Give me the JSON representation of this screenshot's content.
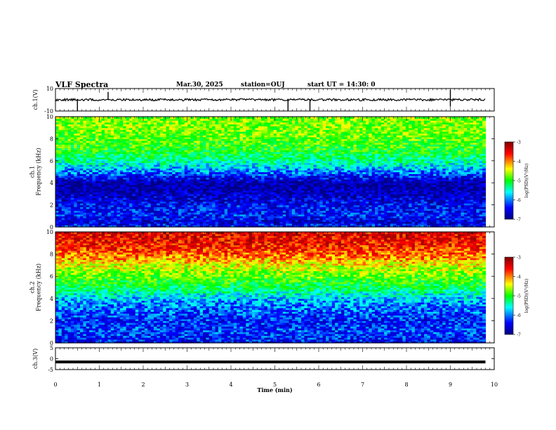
{
  "header": {
    "title": "VLF Spectra",
    "date": "Mar.30, 2025",
    "station": "station=OUJ",
    "start": "start  UT =   14:30: 0"
  },
  "chart_data": [
    {
      "type": "line",
      "name": "ch1-waveform",
      "ylabel": "ch.1(V)",
      "ytick_labels": [
        "10",
        "-10"
      ],
      "ylim": [
        -10,
        10
      ],
      "xlim": [
        0,
        10
      ],
      "trace_level": 0,
      "spikes": [
        {
          "t": 0.5,
          "v": -10
        },
        {
          "t": 1.2,
          "v": 7
        },
        {
          "t": 5.3,
          "v": -10
        },
        {
          "t": 5.8,
          "v": -10
        },
        {
          "t": 9.0,
          "v": 9
        },
        {
          "t": 9.0,
          "v": -6
        }
      ]
    },
    {
      "type": "heatmap",
      "name": "ch1-spectrogram",
      "ylabel": "ch.1\nFrequency (kHz)",
      "ytick_labels": [
        "0",
        "2",
        "4",
        "6",
        "8",
        "10"
      ],
      "ylim": [
        0,
        10
      ],
      "xlim": [
        0,
        9.8
      ],
      "colorbar": {
        "label": "log(PSD)(V²/Hz)",
        "range": [
          -7,
          -3
        ],
        "ticks": [
          "-3",
          "-4",
          "-5",
          "-6",
          "-7"
        ]
      },
      "approx_level_by_freq_khz": [
        {
          "f": 0.0,
          "v": -6.2
        },
        {
          "f": 0.5,
          "v": -6.6
        },
        {
          "f": 1.0,
          "v": -6.3
        },
        {
          "f": 2.0,
          "v": -6.4
        },
        {
          "f": 3.0,
          "v": -6.7
        },
        {
          "f": 4.0,
          "v": -6.8
        },
        {
          "f": 5.0,
          "v": -6.0
        },
        {
          "f": 6.0,
          "v": -5.4
        },
        {
          "f": 7.0,
          "v": -5.0
        },
        {
          "f": 8.0,
          "v": -4.8
        },
        {
          "f": 9.0,
          "v": -4.7
        },
        {
          "f": 10.0,
          "v": -4.7
        }
      ]
    },
    {
      "type": "heatmap",
      "name": "ch2-spectrogram",
      "ylabel": "ch.2\nFrequency (kHz)",
      "ytick_labels": [
        "0",
        "2",
        "4",
        "6",
        "8",
        "10"
      ],
      "ylim": [
        0,
        10
      ],
      "xlim": [
        0,
        9.8
      ],
      "colorbar": {
        "label": "log(PSD)(V²/Hz)",
        "range": [
          -7,
          -3
        ],
        "ticks": [
          "-3",
          "-4",
          "-5",
          "-6",
          "-7"
        ]
      },
      "approx_level_by_freq_khz": [
        {
          "f": 0.0,
          "v": -6.4
        },
        {
          "f": 1.0,
          "v": -6.2
        },
        {
          "f": 2.0,
          "v": -6.3
        },
        {
          "f": 3.0,
          "v": -6.1
        },
        {
          "f": 4.0,
          "v": -5.8
        },
        {
          "f": 5.0,
          "v": -5.2
        },
        {
          "f": 6.0,
          "v": -4.8
        },
        {
          "f": 7.0,
          "v": -4.4
        },
        {
          "f": 8.0,
          "v": -3.9
        },
        {
          "f": 9.0,
          "v": -3.6
        },
        {
          "f": 10.0,
          "v": -3.5
        }
      ]
    },
    {
      "type": "line",
      "name": "ch3-waveform",
      "ylabel": "ch.3(V)",
      "ytick_labels": [
        "5",
        "0",
        "-5"
      ],
      "ylim": [
        -5,
        5
      ],
      "xlim": [
        0,
        10
      ],
      "trace_level": -1.5
    }
  ],
  "xaxis": {
    "label": "Time (min)",
    "tick_labels": [
      "0",
      "1",
      "2",
      "3",
      "4",
      "5",
      "6",
      "7",
      "8",
      "9",
      "10"
    ],
    "xlim": [
      0,
      10
    ]
  },
  "colors": {
    "trace": "#000000",
    "colormap": [
      "#000080",
      "#0000ff",
      "#00ffff",
      "#00ff00",
      "#ffff00",
      "#ff0000",
      "#800000"
    ]
  }
}
